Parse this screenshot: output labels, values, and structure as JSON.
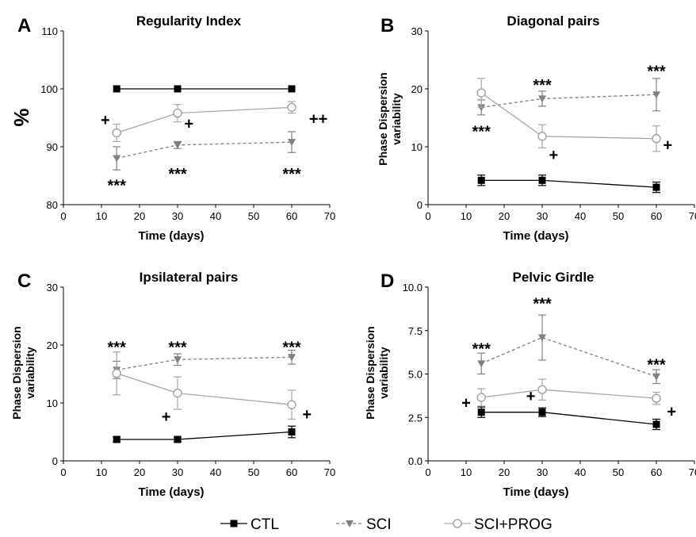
{
  "colors": {
    "ctl": "#000000",
    "sci": "#808080",
    "prog": "#a6a6a6",
    "axis": "#000000"
  },
  "legend": [
    {
      "key": "ctl",
      "label": "CTL",
      "marker": "square",
      "dash": "solid"
    },
    {
      "key": "sci",
      "label": "SCI",
      "marker": "triangle",
      "dash": "dashed"
    },
    {
      "key": "prog",
      "label": "SCI+PROG",
      "marker": "circle",
      "dash": "solid"
    }
  ],
  "chart_data": [
    {
      "panel": "A",
      "type": "line",
      "title": "Regularity Index",
      "xlabel": "Time (days)",
      "ylabel": "%",
      "ylabel_style": "large",
      "xlim": [
        0,
        70
      ],
      "xticks": [
        "0",
        "10",
        "20",
        "30",
        "40",
        "50",
        "60",
        "70"
      ],
      "ylim": [
        80,
        110
      ],
      "yticks": [
        "80",
        "90",
        "100",
        "110"
      ],
      "x": [
        14,
        30,
        60
      ],
      "series": [
        {
          "key": "ctl",
          "values": [
            100,
            100,
            100
          ],
          "err": [
            0,
            0,
            0
          ]
        },
        {
          "key": "sci",
          "values": [
            88.0,
            90.3,
            90.8
          ],
          "err": [
            2.0,
            0.6,
            1.8
          ]
        },
        {
          "key": "prog",
          "values": [
            92.4,
            95.8,
            96.8
          ],
          "err": [
            1.5,
            1.5,
            1.0
          ]
        }
      ],
      "annotations": [
        {
          "text": "+",
          "x": 11,
          "y": 94.8
        },
        {
          "text": "+",
          "x": 33,
          "y": 94.2
        },
        {
          "text": "++",
          "x": 67,
          "y": 95.0
        },
        {
          "text": "***",
          "x": 14,
          "y": 83.5
        },
        {
          "text": "***",
          "x": 30,
          "y": 85.5
        },
        {
          "text": "***",
          "x": 60,
          "y": 85.5
        }
      ]
    },
    {
      "panel": "B",
      "type": "line",
      "title": "Diagonal pairs",
      "xlabel": "Time (days)",
      "ylabel": "Phase Dispersion variability",
      "ylabel_style": "small",
      "xlim": [
        0,
        70
      ],
      "xticks": [
        "0",
        "10",
        "20",
        "30",
        "40",
        "50",
        "60",
        "70"
      ],
      "ylim": [
        0,
        30
      ],
      "yticks": [
        "0",
        "10",
        "20",
        "30"
      ],
      "x": [
        14,
        30,
        60
      ],
      "series": [
        {
          "key": "ctl",
          "values": [
            4.2,
            4.2,
            3.0
          ],
          "err": [
            0.9,
            0.9,
            0.9
          ]
        },
        {
          "key": "sci",
          "values": [
            16.8,
            18.3,
            19.0
          ],
          "err": [
            1.3,
            1.3,
            2.8
          ]
        },
        {
          "key": "prog",
          "values": [
            19.3,
            11.8,
            11.4
          ],
          "err": [
            2.5,
            2.0,
            2.2
          ]
        }
      ],
      "annotations": [
        {
          "text": "***",
          "x": 14,
          "y": 12.8
        },
        {
          "text": "***",
          "x": 30,
          "y": 20.8
        },
        {
          "text": "***",
          "x": 60,
          "y": 23.2
        },
        {
          "text": "+",
          "x": 33,
          "y": 8.8
        },
        {
          "text": "+",
          "x": 63,
          "y": 10.5
        }
      ]
    },
    {
      "panel": "C",
      "type": "line",
      "title": "Ipsilateral pairs",
      "xlabel": "Time (days)",
      "ylabel": "Phase Dispersion variability",
      "ylabel_style": "small",
      "xlim": [
        0,
        70
      ],
      "xticks": [
        "0",
        "10",
        "20",
        "30",
        "40",
        "50",
        "60",
        "70"
      ],
      "ylim": [
        0,
        30
      ],
      "yticks": [
        "0",
        "10",
        "20",
        "30"
      ],
      "x": [
        14,
        30,
        60
      ],
      "series": [
        {
          "key": "ctl",
          "values": [
            3.7,
            3.7,
            5.0
          ],
          "err": [
            0.4,
            0.4,
            1.0
          ]
        },
        {
          "key": "sci",
          "values": [
            15.7,
            17.5,
            17.9
          ],
          "err": [
            1.5,
            1.0,
            1.2
          ]
        },
        {
          "key": "prog",
          "values": [
            15.1,
            11.7,
            9.7
          ],
          "err": [
            3.7,
            2.8,
            2.5
          ]
        }
      ],
      "annotations": [
        {
          "text": "***",
          "x": 14,
          "y": 19.8
        },
        {
          "text": "***",
          "x": 30,
          "y": 19.8
        },
        {
          "text": "***",
          "x": 60,
          "y": 19.8
        },
        {
          "text": "+",
          "x": 27,
          "y": 7.8
        },
        {
          "text": "+",
          "x": 64,
          "y": 8.2
        }
      ]
    },
    {
      "panel": "D",
      "type": "line",
      "title": "Pelvic Girdle",
      "xlabel": "Time (days)",
      "ylabel": "Phase Dispersion variability",
      "ylabel_style": "small",
      "xlim": [
        0,
        70
      ],
      "xticks": [
        "0",
        "10",
        "20",
        "30",
        "40",
        "50",
        "60",
        "70"
      ],
      "ylim": [
        0,
        10
      ],
      "yticks": [
        "0.0",
        "2.5",
        "5.0",
        "7.5",
        "10.0"
      ],
      "x": [
        14,
        30,
        60
      ],
      "series": [
        {
          "key": "ctl",
          "values": [
            2.8,
            2.8,
            2.1
          ],
          "err": [
            0.3,
            0.25,
            0.3
          ]
        },
        {
          "key": "sci",
          "values": [
            5.6,
            7.1,
            4.85
          ],
          "err": [
            0.6,
            1.3,
            0.4
          ]
        },
        {
          "key": "prog",
          "values": [
            3.65,
            4.1,
            3.6
          ],
          "err": [
            0.5,
            0.6,
            0.35
          ]
        }
      ],
      "annotations": [
        {
          "text": "***",
          "x": 14,
          "y": 6.5
        },
        {
          "text": "***",
          "x": 30,
          "y": 9.1
        },
        {
          "text": "***",
          "x": 60,
          "y": 5.6
        },
        {
          "text": "+",
          "x": 10,
          "y": 3.4
        },
        {
          "text": "+",
          "x": 27,
          "y": 3.8
        },
        {
          "text": "+",
          "x": 64,
          "y": 2.9
        }
      ]
    }
  ]
}
